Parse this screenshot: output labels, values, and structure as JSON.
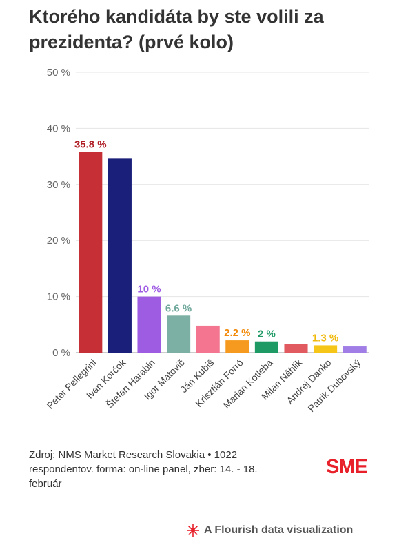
{
  "title": "Ktorého kandidáta by ste volili za prezidenta? (prvé kolo)",
  "chart_data": {
    "type": "bar",
    "categories": [
      "Peter Pellegrini",
      "Ivan Korčok",
      "Štefan Harabin",
      "Igor Matovič",
      "Ján Kubiš",
      "Krisztián Forró",
      "Marian Kotleba",
      "Milan Náhlik",
      "Andrej Danko",
      "Patrik Dubovský"
    ],
    "values": [
      35.8,
      34.6,
      10,
      6.6,
      4.8,
      2.2,
      2,
      1.5,
      1.3,
      1.1
    ],
    "data_labels": [
      "35.8 %",
      "",
      "10 %",
      "6.6 %",
      "",
      "2.2 %",
      "2 %",
      "",
      "1.3 %",
      ""
    ],
    "colors": [
      "#c62f35",
      "#1a1f7a",
      "#9e5ce3",
      "#7cb0a4",
      "#f3758f",
      "#f59a1e",
      "#1e9a65",
      "#e05a5f",
      "#f5c518",
      "#a07ee6"
    ],
    "label_colors": [
      "#b01e25",
      "",
      "#9e5ce3",
      "#6fa89b",
      "",
      "#f28a0c",
      "#1e9a65",
      "",
      "#f0b90a",
      ""
    ],
    "yticks": [
      "0 %",
      "10 %",
      "20 %",
      "30 %",
      "40 %",
      "50 %"
    ],
    "ylim": [
      0,
      50
    ],
    "grid": true
  },
  "source": "Zdroj: NMS Market Research Slovakia • 1022 respondentov. forma: on-line panel, zber: 14. - 18. február",
  "logo_text": "SME",
  "attribution": "A Flourish data visualization"
}
